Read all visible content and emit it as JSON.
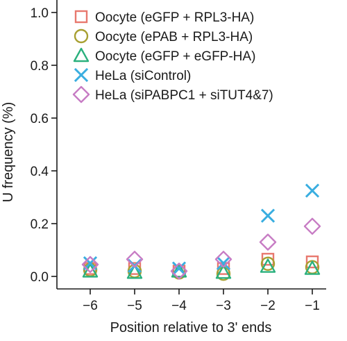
{
  "chart_data": {
    "type": "scatter",
    "xlabel": "Position relative to 3' ends",
    "ylabel": "U frequency (%)",
    "categories": [
      "−6",
      "−5",
      "−4",
      "−3",
      "−2",
      "−1"
    ],
    "x": [
      -6,
      -5,
      -4,
      -3,
      -2,
      -1
    ],
    "ylim": [
      0,
      1.0
    ],
    "yticks": [
      0.0,
      0.2,
      0.4,
      0.6,
      0.8,
      1.0
    ],
    "ytick_labels": [
      "0.0",
      "0.2",
      "0.4",
      "0.6",
      "0.8",
      "1.0"
    ],
    "grid": false,
    "legend_position": "top-left",
    "series": [
      {
        "name": "Oocyte (eGFP + RPL3-HA)",
        "marker": "square",
        "color": "#e8786e",
        "values": [
          0.03,
          0.03,
          0.02,
          0.03,
          0.065,
          0.055
        ]
      },
      {
        "name": "Oocyte (ePAB + RPL3-HA)",
        "marker": "circle",
        "color": "#a8a032",
        "values": [
          0.025,
          0.02,
          0.015,
          0.01,
          0.048,
          0.035
        ]
      },
      {
        "name": "Oocyte (eGFP + eGFP-HA)",
        "marker": "triangle",
        "color": "#2ab07d",
        "values": [
          0.02,
          0.015,
          0.02,
          0.015,
          0.038,
          0.03
        ]
      },
      {
        "name": "HeLa (siControl)",
        "marker": "x",
        "color": "#3aaee0",
        "values": [
          0.05,
          0.04,
          0.03,
          0.05,
          0.23,
          0.325
        ]
      },
      {
        "name": "HeLa (siPABPC1 + siTUT4&7)",
        "marker": "diamond",
        "color": "#c77cc4",
        "values": [
          0.045,
          0.065,
          0.02,
          0.065,
          0.13,
          0.19
        ]
      }
    ]
  }
}
